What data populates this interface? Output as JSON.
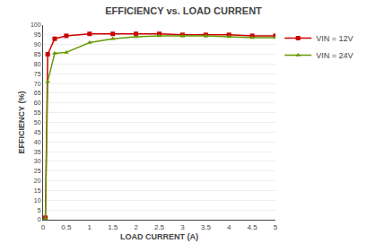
{
  "chart_data": {
    "type": "line",
    "title": "EFFICIENCY vs. LOAD CURRENT",
    "x_label": "LOAD CURRENT (A)",
    "y_label": "EFFICIENCY (%)",
    "series": [
      {
        "name": "VIN = 12V",
        "color": "#cc0000",
        "marker": "square",
        "x": [
          0.05,
          0.1,
          0.25,
          0.5,
          1.0,
          1.5,
          2.0,
          2.5,
          3.0,
          3.5,
          4.0,
          4.5,
          5.0
        ],
        "values": [
          1.0,
          85.0,
          93.0,
          94.5,
          95.5,
          95.5,
          95.5,
          95.5,
          95.0,
          95.0,
          95.0,
          94.5,
          94.5
        ]
      },
      {
        "name": "VIN = 24V",
        "color": "#669900",
        "marker": "triangle-up",
        "x": [
          0.05,
          0.1,
          0.25,
          0.5,
          1.0,
          1.5,
          2.0,
          2.5,
          3.0,
          3.5,
          4.0,
          4.5,
          5.0
        ],
        "values": [
          0.5,
          71.0,
          85.5,
          86.0,
          91.0,
          93.0,
          94.0,
          94.5,
          94.5,
          94.5,
          94.0,
          93.5,
          93.5
        ]
      }
    ],
    "xlim": [
      0,
      5
    ],
    "ylim": [
      0,
      100
    ],
    "xticks": [
      0,
      0.5,
      1,
      1.5,
      2,
      2.5,
      3,
      3.5,
      4,
      4.5,
      5
    ],
    "yticks": [
      0,
      5,
      10,
      15,
      20,
      25,
      30,
      35,
      40,
      45,
      50,
      55,
      60,
      65,
      70,
      75,
      80,
      85,
      90,
      95,
      100
    ],
    "grid": "y",
    "legend": "right"
  }
}
